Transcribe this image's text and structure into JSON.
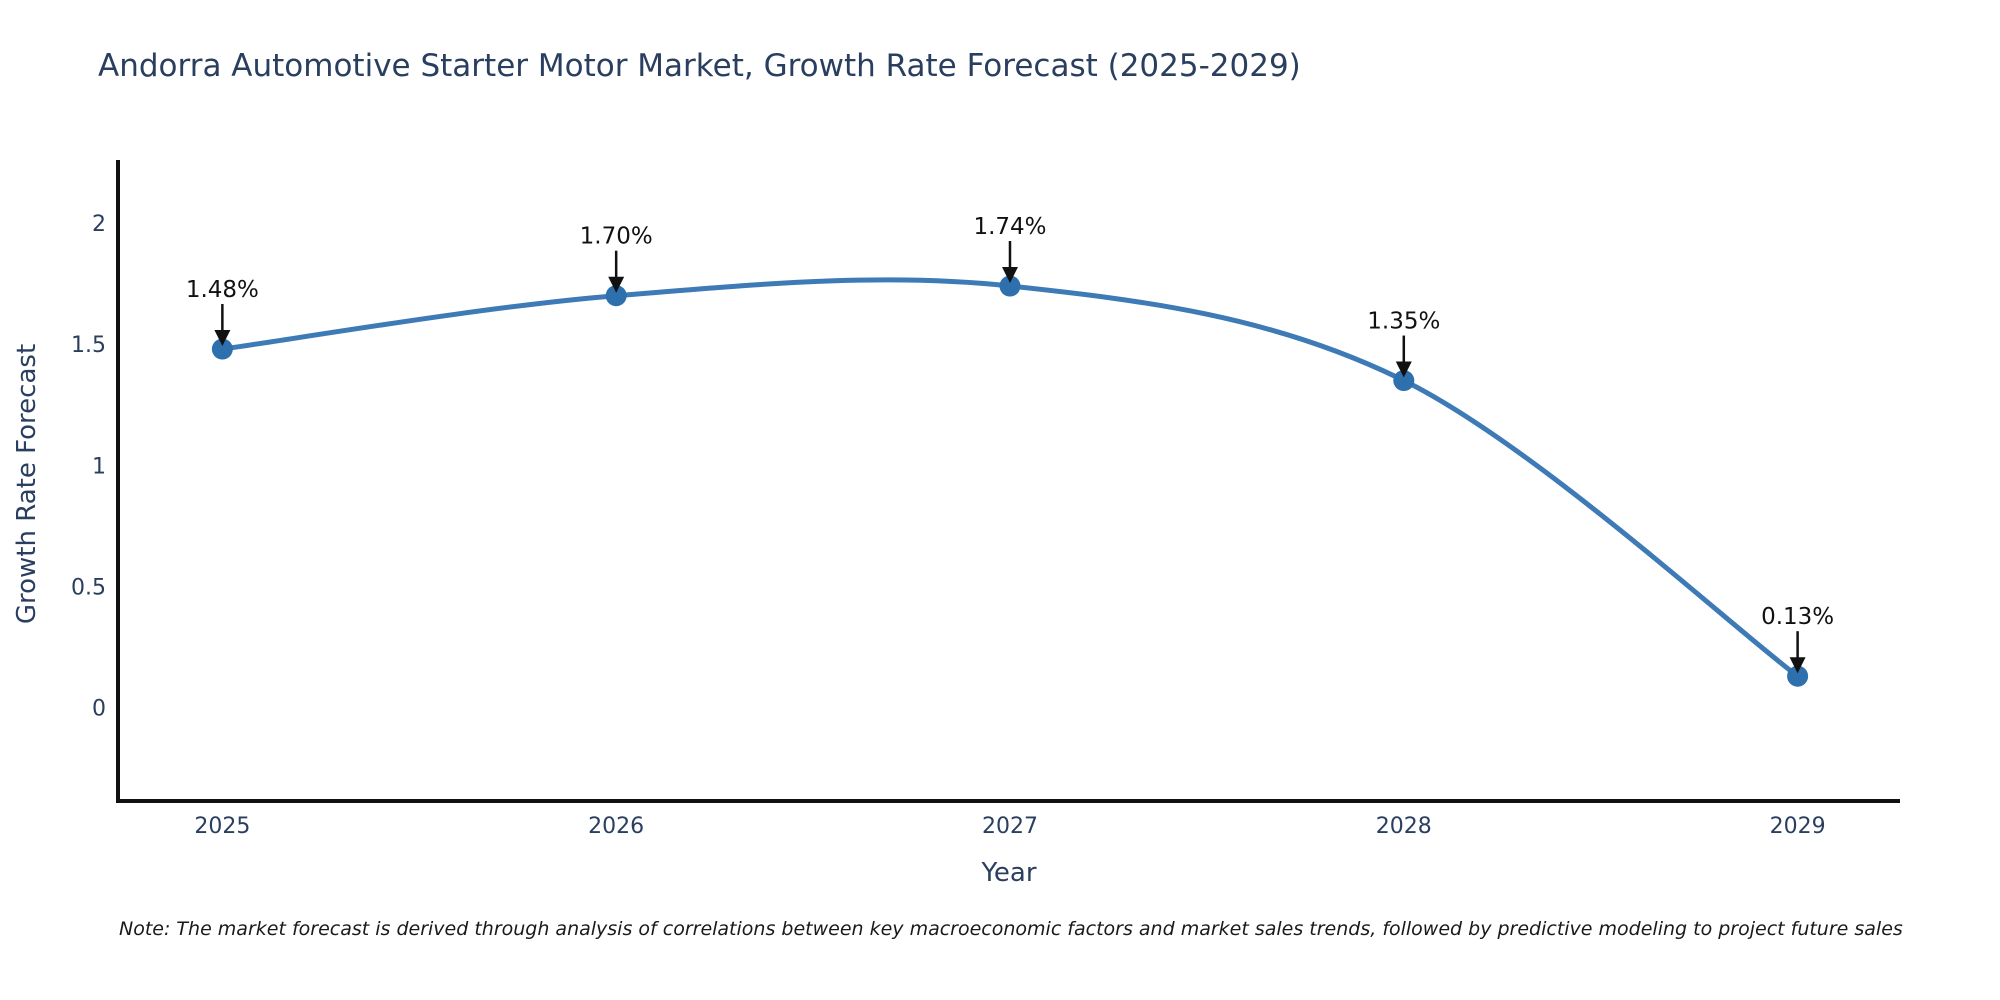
{
  "chart_data": {
    "type": "line",
    "title": "Andorra Automotive Starter Motor Market, Growth Rate Forecast (2025-2029)",
    "xlabel": "Year",
    "ylabel": "Growth Rate Forecast",
    "x": [
      2025,
      2026,
      2027,
      2028,
      2029
    ],
    "values": [
      1.48,
      1.7,
      1.74,
      1.35,
      0.13
    ],
    "point_labels": [
      "1.48%",
      "1.70%",
      "1.74%",
      "1.35%",
      "0.13%"
    ],
    "xtick_labels": [
      "2025",
      "2026",
      "2027",
      "2028",
      "2029"
    ],
    "yticks": [
      0,
      0.5,
      1,
      1.5,
      2
    ],
    "ytick_labels": [
      "0",
      "0.5",
      "1",
      "1.5",
      "2"
    ],
    "xlim": [
      2024.735,
      2029.26
    ],
    "ylim": [
      -0.385,
      2.26
    ],
    "grid": false,
    "legend": "none",
    "line_style": "smooth-spline",
    "colors": {
      "line": "#3d7ab6",
      "marker": "#2e6fad",
      "axis": "#111111",
      "text": "#2a3f5f",
      "annotation": "#111111",
      "background": "#ffffff"
    }
  },
  "footnote": "Note: The market forecast is derived through analysis of correlations between key macroeconomic factors and market sales trends, followed by predictive modeling to project future sales"
}
